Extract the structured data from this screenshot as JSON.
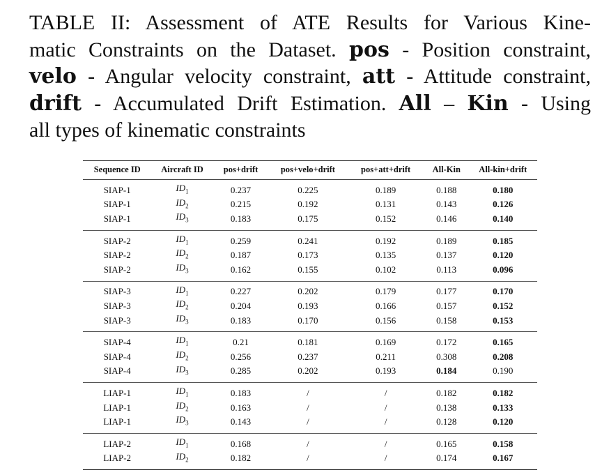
{
  "caption": {
    "line1": "TABLE II: Assessment of ATE Results for Various Kine-",
    "line2_a": "matic Constraints on the Dataset.",
    "line2_b": "pos",
    "line2_c": "- Position constraint,",
    "line3_a": "velo",
    "line3_b": "- Angular velocity constraint,",
    "line3_c": "att",
    "line3_d": "- Attitude constraint,",
    "line4_a": "drift",
    "line4_b": "- Accumulated Drift Estimation.",
    "line4_c": "All",
    "line4_d": "–",
    "line4_e": "Kin",
    "line4_f": "- Using",
    "line5": "all types of kinematic constraints"
  },
  "table": {
    "headers": [
      "Sequence ID",
      "Aircraft ID",
      "pos+drift",
      "pos+velo+drift",
      "pos+att+drift",
      "All-Kin",
      "All-kin+drift"
    ],
    "groups": [
      {
        "rows": [
          {
            "seq": "SIAP-1",
            "aid": "ID",
            "sub": "1",
            "v": [
              "0.237",
              "0.225",
              "0.189",
              "0.188",
              "0.180"
            ],
            "bold": [
              4
            ]
          },
          {
            "seq": "SIAP-1",
            "aid": "ID",
            "sub": "2",
            "v": [
              "0.215",
              "0.192",
              "0.131",
              "0.143",
              "0.126"
            ],
            "bold": [
              4
            ]
          },
          {
            "seq": "SIAP-1",
            "aid": "ID",
            "sub": "3",
            "v": [
              "0.183",
              "0.175",
              "0.152",
              "0.146",
              "0.140"
            ],
            "bold": [
              4
            ]
          }
        ]
      },
      {
        "rows": [
          {
            "seq": "SIAP-2",
            "aid": "ID",
            "sub": "1",
            "v": [
              "0.259",
              "0.241",
              "0.192",
              "0.189",
              "0.185"
            ],
            "bold": [
              4
            ]
          },
          {
            "seq": "SIAP-2",
            "aid": "ID",
            "sub": "2",
            "v": [
              "0.187",
              "0.173",
              "0.135",
              "0.137",
              "0.120"
            ],
            "bold": [
              4
            ]
          },
          {
            "seq": "SIAP-2",
            "aid": "ID",
            "sub": "3",
            "v": [
              "0.162",
              "0.155",
              "0.102",
              "0.113",
              "0.096"
            ],
            "bold": [
              4
            ]
          }
        ]
      },
      {
        "rows": [
          {
            "seq": "SIAP-3",
            "aid": "ID",
            "sub": "1",
            "v": [
              "0.227",
              "0.202",
              "0.179",
              "0.177",
              "0.170"
            ],
            "bold": [
              4
            ]
          },
          {
            "seq": "SIAP-3",
            "aid": "ID",
            "sub": "2",
            "v": [
              "0.204",
              "0.193",
              "0.166",
              "0.157",
              "0.152"
            ],
            "bold": [
              4
            ]
          },
          {
            "seq": "SIAP-3",
            "aid": "ID",
            "sub": "3",
            "v": [
              "0.183",
              "0.170",
              "0.156",
              "0.158",
              "0.153"
            ],
            "bold": [
              4
            ]
          }
        ]
      },
      {
        "rows": [
          {
            "seq": "SIAP-4",
            "aid": "ID",
            "sub": "1",
            "v": [
              "0.21",
              "0.181",
              "0.169",
              "0.172",
              "0.165"
            ],
            "bold": [
              4
            ]
          },
          {
            "seq": "SIAP-4",
            "aid": "ID",
            "sub": "2",
            "v": [
              "0.256",
              "0.237",
              "0.211",
              "0.308",
              "0.208"
            ],
            "bold": [
              4
            ]
          },
          {
            "seq": "SIAP-4",
            "aid": "ID",
            "sub": "3",
            "v": [
              "0.285",
              "0.202",
              "0.193",
              "0.184",
              "0.190"
            ],
            "bold": [
              3
            ]
          }
        ]
      },
      {
        "rows": [
          {
            "seq": "LIAP-1",
            "aid": "ID",
            "sub": "1",
            "v": [
              "0.183",
              "/",
              "/",
              "0.182",
              "0.182"
            ],
            "bold": [
              4
            ]
          },
          {
            "seq": "LIAP-1",
            "aid": "ID",
            "sub": "2",
            "v": [
              "0.163",
              "/",
              "/",
              "0.138",
              "0.133"
            ],
            "bold": [
              4
            ]
          },
          {
            "seq": "LIAP-1",
            "aid": "ID",
            "sub": "3",
            "v": [
              "0.143",
              "/",
              "/",
              "0.128",
              "0.120"
            ],
            "bold": [
              4
            ]
          }
        ]
      },
      {
        "rows": [
          {
            "seq": "LIAP-2",
            "aid": "ID",
            "sub": "1",
            "v": [
              "0.168",
              "/",
              "/",
              "0.165",
              "0.158"
            ],
            "bold": [
              4
            ]
          },
          {
            "seq": "LIAP-2",
            "aid": "ID",
            "sub": "2",
            "v": [
              "0.182",
              "/",
              "/",
              "0.174",
              "0.167"
            ],
            "bold": [
              4
            ]
          }
        ]
      }
    ]
  }
}
